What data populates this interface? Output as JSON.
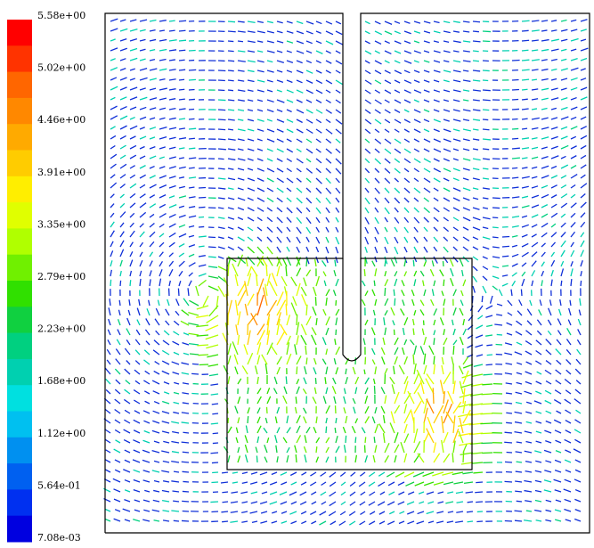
{
  "colorbar": {
    "labels": [
      "5.58e+00",
      "5.02e+00",
      "4.46e+00",
      "3.91e+00",
      "3.35e+00",
      "2.79e+00",
      "2.23e+00",
      "1.68e+00",
      "1.12e+00",
      "5.64e-01",
      "7.08e-03"
    ],
    "colors": [
      "#ff0000",
      "#ff3300",
      "#ff6600",
      "#ff8800",
      "#ffaa00",
      "#ffcc00",
      "#ffee00",
      "#e0ff00",
      "#b0ff00",
      "#70f000",
      "#30e000",
      "#10d040",
      "#00d080",
      "#00d0b0",
      "#00e0e0",
      "#00c0f0",
      "#0090f0",
      "#0060f0",
      "#0030f0",
      "#0000e0"
    ]
  }
}
